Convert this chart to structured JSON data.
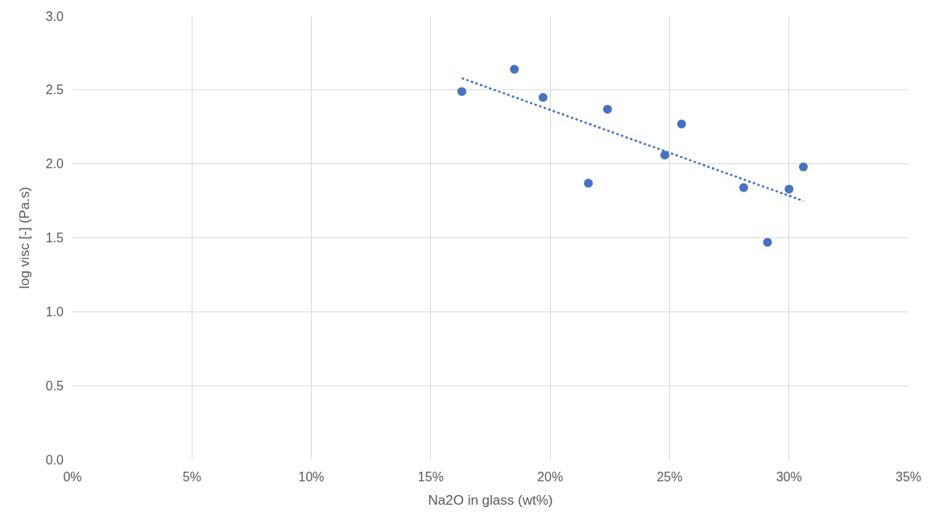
{
  "chart_data": {
    "type": "scatter",
    "xlabel": "Na2O in glass (wt%)",
    "ylabel": "log visc [-] (Pa.s)",
    "x": [
      16.3,
      18.5,
      19.7,
      21.6,
      22.4,
      24.8,
      25.5,
      28.1,
      29.1,
      30.0,
      30.6
    ],
    "series": [
      {
        "color": "#4472c4",
        "marker": "circle",
        "values": [
          2.49,
          2.64,
          2.45,
          1.87,
          2.37,
          2.06,
          2.27,
          1.84,
          1.47,
          1.83,
          1.98
        ]
      },
      {
        "type": "line",
        "color": "#4472c4",
        "line_style": "dotted",
        "marker": "none",
        "x": [
          16.3,
          30.6
        ],
        "values": [
          2.58,
          1.75
        ]
      }
    ],
    "xlim": [
      0,
      35
    ],
    "ylim": [
      0,
      3
    ],
    "xticks": [
      {
        "value": 0,
        "label": "0%"
      },
      {
        "value": 5,
        "label": "5%"
      },
      {
        "value": 10,
        "label": "10%"
      },
      {
        "value": 15,
        "label": "15%"
      },
      {
        "value": 20,
        "label": "20%"
      },
      {
        "value": 25,
        "label": "25%"
      },
      {
        "value": 30,
        "label": "30%"
      },
      {
        "value": 35,
        "label": "35%"
      }
    ],
    "yticks": [
      {
        "value": 0,
        "label": "0.0"
      },
      {
        "value": 0.5,
        "label": "0.5"
      },
      {
        "value": 1,
        "label": "1.0"
      },
      {
        "value": 1.5,
        "label": "1.5"
      },
      {
        "value": 2,
        "label": "2.0"
      },
      {
        "value": 2.5,
        "label": "2.5"
      },
      {
        "value": 3,
        "label": "3.0"
      }
    ],
    "grid": true
  }
}
